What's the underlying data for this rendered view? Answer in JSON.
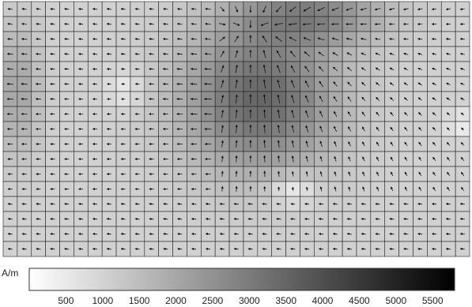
{
  "chart_data": {
    "type": "heatmap",
    "subtype": "vector-field",
    "colormap": "grayscale, light to dark",
    "colorbar": {
      "unit": "A/m",
      "min": 0,
      "max": 5800,
      "ticks": [
        500,
        1000,
        1500,
        2000,
        2500,
        3000,
        3500,
        4000,
        4500,
        5000,
        5500
      ]
    },
    "grid": {
      "columns": 33,
      "rows": 17
    },
    "description_of_field": "magnetic field strength map with direction arrows; dark region near center-top with arrows converging toward it"
  }
}
